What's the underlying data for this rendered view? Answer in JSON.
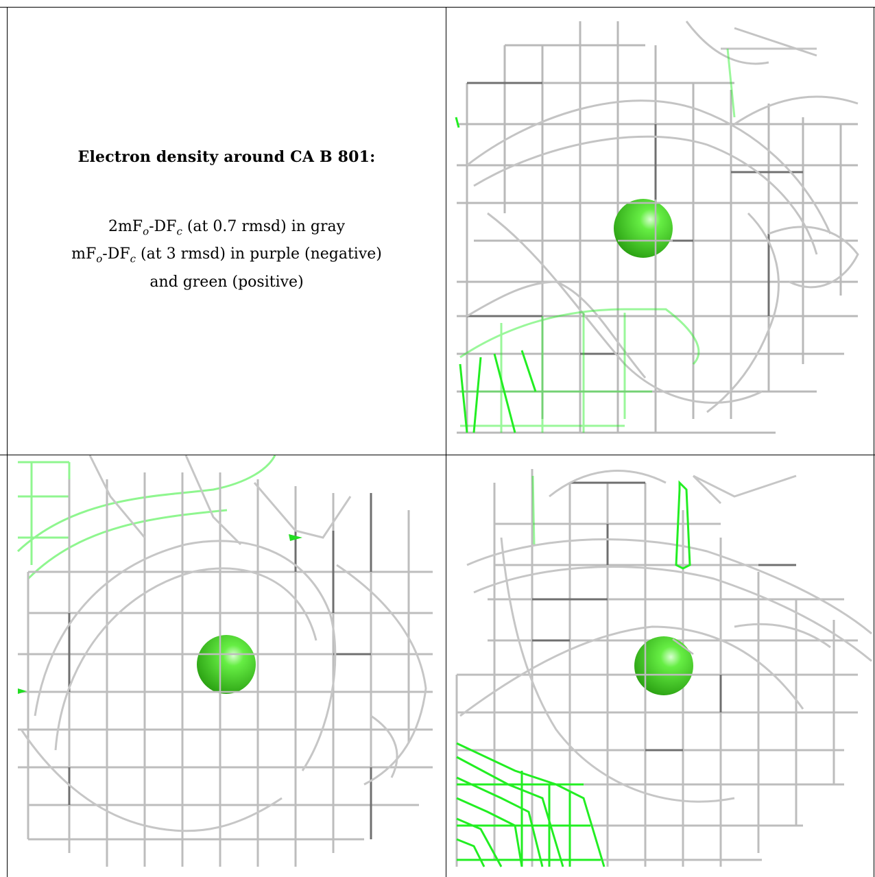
{
  "caption": {
    "title": "Electron density around CA B 801:",
    "legend_line1_pre": "2mF",
    "legend_line1_sub1": "o",
    "legend_line1_mid": "-DF",
    "legend_line1_sub2": "c",
    "legend_line1_post": " (at 0.7 rmsd) in gray",
    "legend_line2_pre": "mF",
    "legend_line2_sub1": "o",
    "legend_line2_mid": "-DF",
    "legend_line2_sub2": "c",
    "legend_line2_post": " (at 3 rmsd) in purple (negative)",
    "legend_line3": "and green (positive)"
  },
  "colors": {
    "gray_mesh": "#8c8c8c",
    "gray_mesh_light": "#cfcfcf",
    "green_mesh": "#22ee22",
    "green_mesh_light": "#a8f5a8",
    "ion_sphere": "#3fd21f",
    "border": "#000000"
  },
  "panels": [
    {
      "name": "density-view-top-right"
    },
    {
      "name": "density-view-bottom-left"
    },
    {
      "name": "density-view-bottom-right"
    }
  ]
}
